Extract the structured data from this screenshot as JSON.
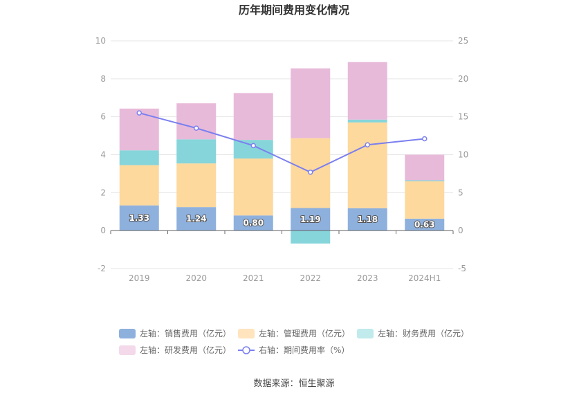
{
  "chart_data": {
    "type": "bar",
    "title": "历年期间费用变化情况",
    "categories": [
      "2019",
      "2020",
      "2021",
      "2022",
      "2023",
      "2024H1"
    ],
    "y_left": {
      "ylim": [
        -2,
        10
      ],
      "ticks": [
        -2,
        0,
        2,
        4,
        6,
        8,
        10
      ]
    },
    "y_right": {
      "ylim": [
        -5,
        25
      ],
      "ticks": [
        -5,
        0,
        5,
        10,
        15,
        20,
        25
      ]
    },
    "stacked": true,
    "series": [
      {
        "name": "左轴：销售费用（亿元）",
        "axis": "left",
        "type": "bar",
        "color": "#8eb0dd",
        "values": [
          1.33,
          1.24,
          0.8,
          1.19,
          1.18,
          0.63
        ],
        "labels": [
          "1.33",
          "1.24",
          "0.80",
          "1.19",
          "1.18",
          "0.63"
        ]
      },
      {
        "name": "左轴：管理费用（亿元）",
        "axis": "left",
        "type": "bar",
        "color": "#fdd99e",
        "values": [
          2.12,
          2.3,
          3.0,
          3.68,
          4.52,
          1.97
        ]
      },
      {
        "name": "左轴：财务费用（亿元）",
        "axis": "left",
        "type": "bar",
        "color": "#86d5da",
        "values": [
          0.78,
          1.27,
          0.98,
          -0.68,
          0.15,
          0.05
        ]
      },
      {
        "name": "左轴：研发费用（亿元）",
        "axis": "left",
        "type": "bar",
        "color": "#e8bad9",
        "values": [
          2.2,
          1.9,
          2.47,
          3.68,
          3.03,
          1.35
        ]
      },
      {
        "name": "右轴：期间费用率（%）",
        "axis": "right",
        "type": "line",
        "color": "#7b7ff0",
        "values": [
          15.5,
          13.5,
          11.2,
          7.7,
          11.3,
          12.1
        ]
      }
    ],
    "grid": true,
    "legend_position": "bottom"
  },
  "source": "数据来源：恒生聚源"
}
